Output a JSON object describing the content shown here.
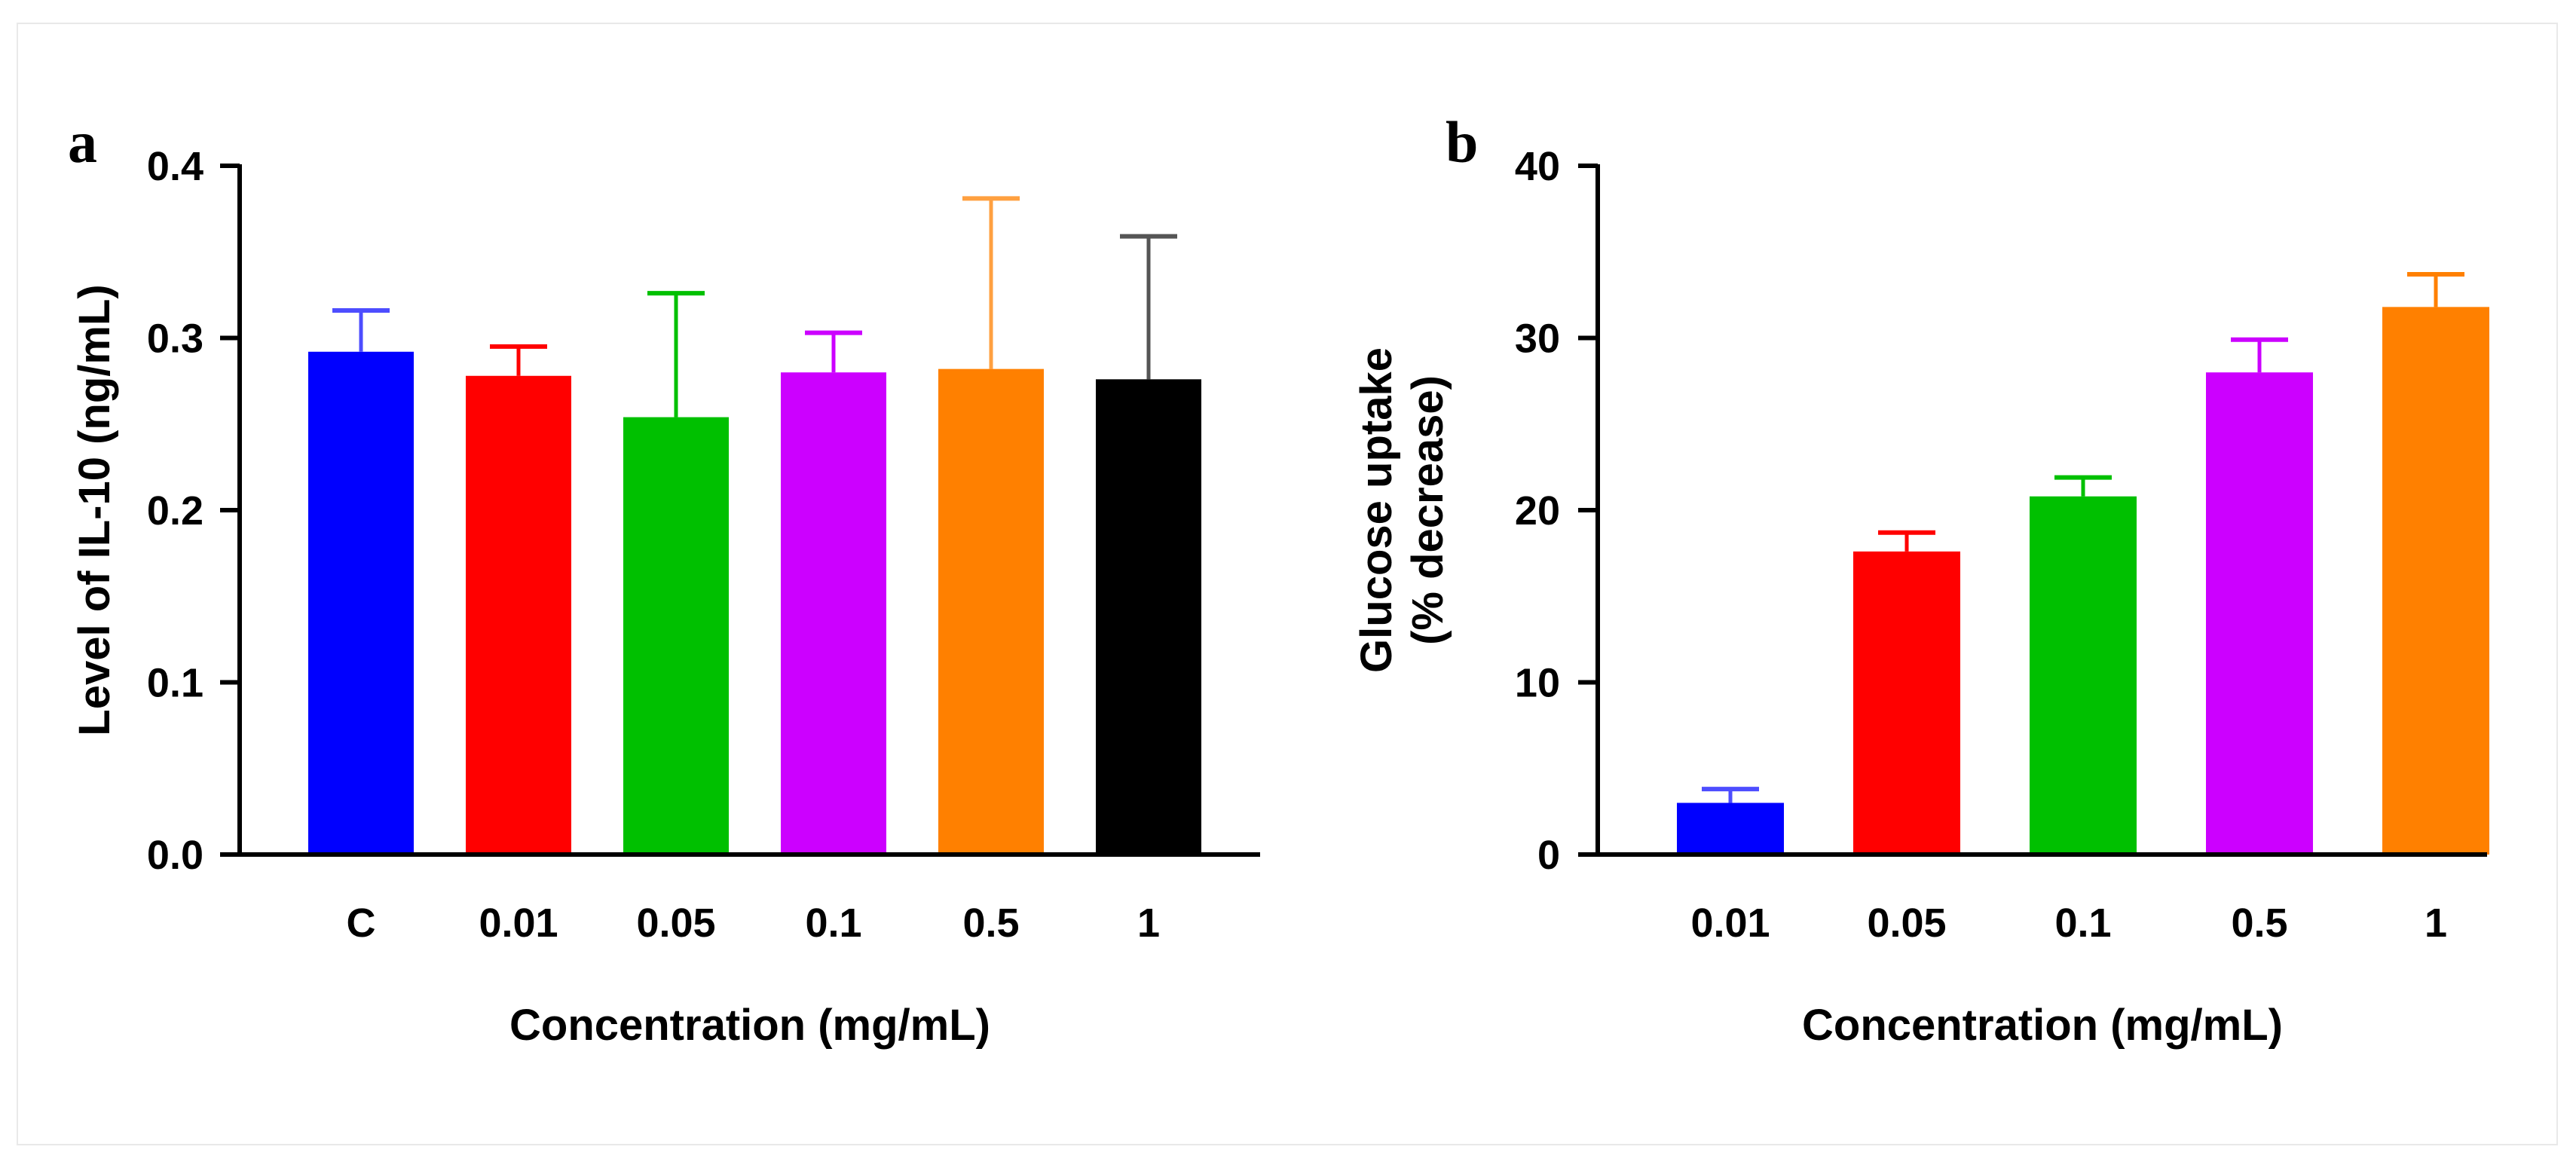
{
  "chart_data": [
    {
      "panel": "a",
      "type": "bar",
      "categories": [
        "C",
        "0.01",
        "0.05",
        "0.1",
        "0.5",
        "1"
      ],
      "values": [
        0.292,
        0.278,
        0.254,
        0.28,
        0.282,
        0.276
      ],
      "errors": [
        0.024,
        0.017,
        0.072,
        0.023,
        0.099,
        0.083
      ],
      "colors": [
        "#0000ff",
        "#ff0000",
        "#00c000",
        "#cc00ff",
        "#ff8000",
        "#000000"
      ],
      "error_colors": [
        "#4d4dff",
        "#ff0000",
        "#00c000",
        "#cc00ff",
        "#ffa040",
        "#555555"
      ],
      "yticks": [
        "0.0",
        "0.1",
        "0.2",
        "0.3",
        "0.4"
      ],
      "ylim": [
        0,
        0.4
      ],
      "xlabel": "Concentration (mg/mL)",
      "ylabel": "Level of IL-10 (ng/mL)",
      "ylabel_lines": [
        "Level of IL-10 (ng/mL)"
      ]
    },
    {
      "panel": "b",
      "type": "bar",
      "categories": [
        "0.01",
        "0.05",
        "0.1",
        "0.5",
        "1"
      ],
      "values": [
        3.0,
        17.6,
        20.8,
        28.0,
        31.8
      ],
      "errors": [
        0.8,
        1.1,
        1.1,
        1.9,
        1.9
      ],
      "colors": [
        "#0000ff",
        "#ff0000",
        "#00c000",
        "#cc00ff",
        "#ff8000"
      ],
      "error_colors": [
        "#4d4dff",
        "#ff0000",
        "#00c000",
        "#cc00ff",
        "#ff8000"
      ],
      "yticks": [
        "0",
        "10",
        "20",
        "30",
        "40"
      ],
      "ylim": [
        0,
        40
      ],
      "xlabel": "Concentration (mg/mL)",
      "ylabel": "Glucose uptake (% decrease)",
      "ylabel_lines": [
        "Glucose uptake",
        "(% decrease)"
      ]
    }
  ]
}
